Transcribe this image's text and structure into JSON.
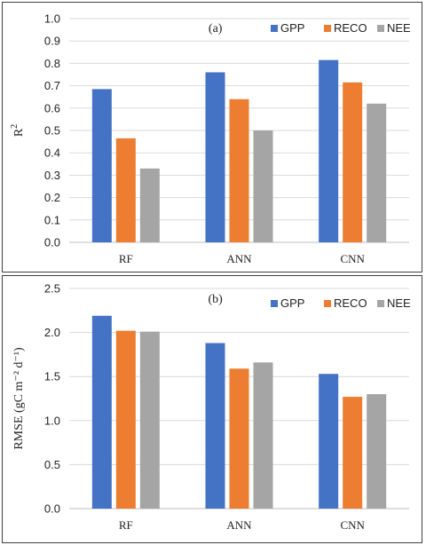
{
  "chart_data": [
    {
      "type": "bar",
      "title": "(a)",
      "ylabel": "R",
      "ylabel_sup": "2",
      "categories": [
        "RF",
        "ANN",
        "CNN"
      ],
      "ylim": [
        0,
        1.0
      ],
      "yticks": [
        "0.0",
        "0.1",
        "0.2",
        "0.3",
        "0.4",
        "0.5",
        "0.6",
        "0.7",
        "0.8",
        "0.9",
        "1.0"
      ],
      "grid": true,
      "legend": "top-right",
      "series": [
        {
          "name": "GPP",
          "color": "#4472C4",
          "values": [
            0.685,
            0.76,
            0.815
          ]
        },
        {
          "name": "RECO",
          "color": "#ED7D31",
          "values": [
            0.465,
            0.64,
            0.715
          ]
        },
        {
          "name": "NEE",
          "color": "#A5A5A5",
          "values": [
            0.33,
            0.5,
            0.62
          ]
        }
      ]
    },
    {
      "type": "bar",
      "title": "(b)",
      "ylabel": "RMSE (gC m⁻² d⁻¹)",
      "categories": [
        "RF",
        "ANN",
        "CNN"
      ],
      "ylim": [
        0,
        2.5
      ],
      "yticks": [
        "0.0",
        "0.5",
        "1.0",
        "1.5",
        "2.0",
        "2.5"
      ],
      "grid": true,
      "legend": "top-right",
      "series": [
        {
          "name": "GPP",
          "color": "#4472C4",
          "values": [
            2.19,
            1.88,
            1.53
          ]
        },
        {
          "name": "RECO",
          "color": "#ED7D31",
          "values": [
            2.02,
            1.59,
            1.27
          ]
        },
        {
          "name": "NEE",
          "color": "#A5A5A5",
          "values": [
            2.01,
            1.66,
            1.3
          ]
        }
      ]
    }
  ]
}
